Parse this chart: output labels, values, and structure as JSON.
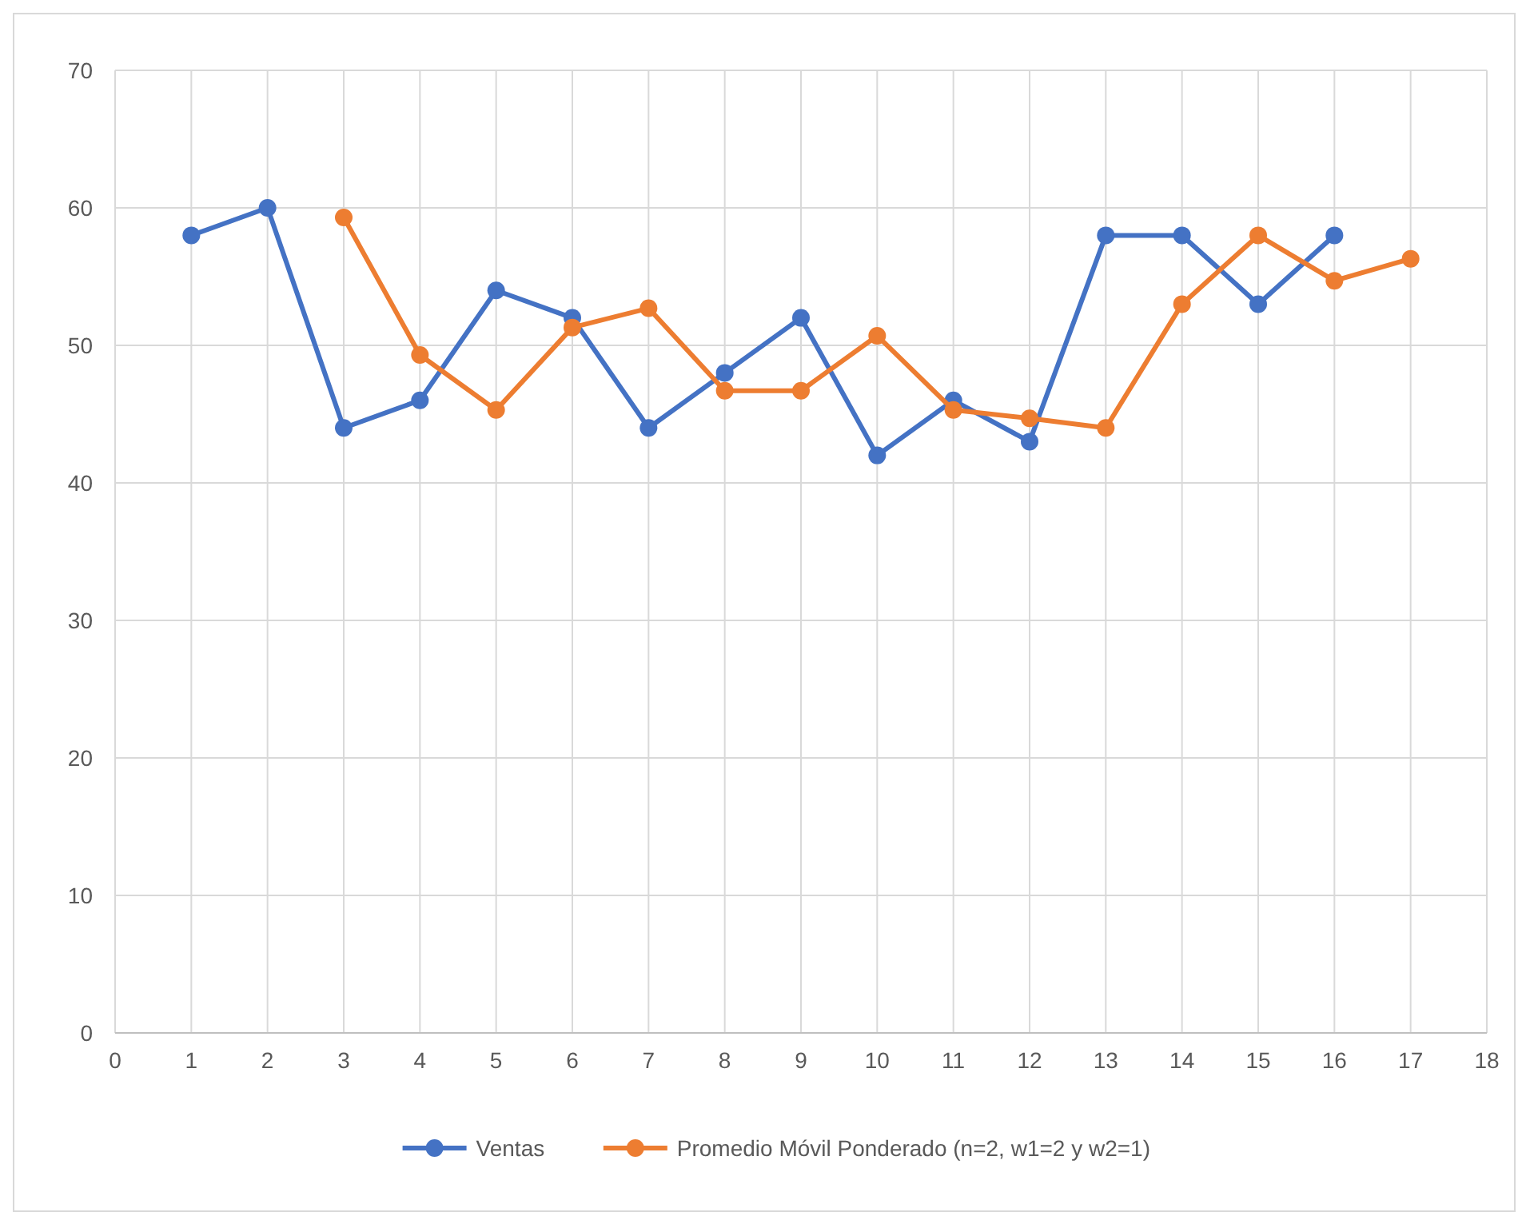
{
  "chart_data": {
    "type": "line",
    "xlim": [
      0,
      18
    ],
    "xticks": [
      0,
      1,
      2,
      3,
      4,
      5,
      6,
      7,
      8,
      9,
      10,
      11,
      12,
      13,
      14,
      15,
      16,
      17,
      18
    ],
    "ylim": [
      0,
      70
    ],
    "yticks": [
      0,
      10,
      20,
      30,
      40,
      50,
      60,
      70
    ],
    "grid": true,
    "legend": "bottom",
    "marker": "circle",
    "line_style": "solid",
    "series": [
      {
        "name": "Ventas",
        "color": "#4472c4",
        "x": [
          1,
          2,
          3,
          4,
          5,
          6,
          7,
          8,
          9,
          10,
          11,
          12,
          13,
          14,
          15,
          16
        ],
        "values": [
          58,
          60,
          44,
          46,
          54,
          52,
          44,
          48,
          52,
          42,
          46,
          43,
          58,
          58,
          53,
          58
        ]
      },
      {
        "name": "Promedio Móvil Ponderado (n=2, w1=2 y w2=1)",
        "color": "#ed7d31",
        "x": [
          3,
          4,
          5,
          6,
          7,
          8,
          9,
          10,
          11,
          12,
          13,
          14,
          15,
          16,
          17
        ],
        "values": [
          59.3,
          49.3,
          45.3,
          51.3,
          52.7,
          46.7,
          46.7,
          50.7,
          45.3,
          44.7,
          44,
          53,
          58,
          54.7,
          56.3
        ]
      }
    ]
  }
}
